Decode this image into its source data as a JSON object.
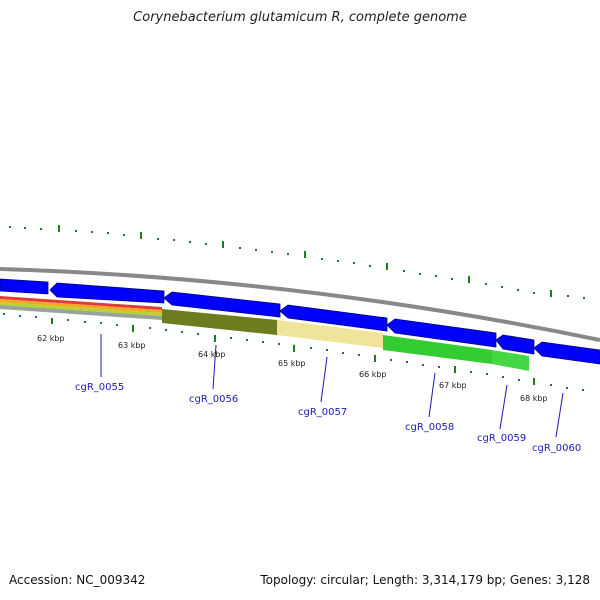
{
  "title": "Corynebacterium glutamicum R, complete genome",
  "footer": {
    "accession": "Accession: NC_009342",
    "summary": "Topology: circular; Length: 3,314,179 bp; Genes: 3,128"
  },
  "scale_labels": [
    "62 kbp",
    "63 kbp",
    "64 kbp",
    "65 kbp",
    "66 kbp",
    "67 kbp",
    "68 kbp"
  ],
  "gene_labels": [
    "cgR_0055",
    "cgR_0056",
    "cgR_0057",
    "cgR_0058",
    "cgR_0059",
    "cgR_0060"
  ],
  "colors": {
    "backbone": "#888888",
    "gene_arrow": "#0000ff",
    "tick": "#1e7d1e",
    "gene_label": "#1a1ab8",
    "feature_olive": "#6b7d1e",
    "feature_yellow": "#f0e39a",
    "feature_green": "#33cc33"
  }
}
